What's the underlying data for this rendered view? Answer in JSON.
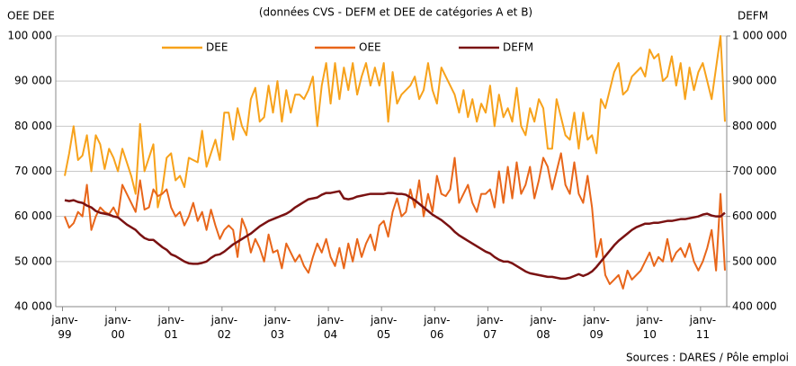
{
  "chart_data": {
    "type": "line",
    "subtitle": "(données CVS - DEFM et DEE de catégories A et B)",
    "ylabel": "OEE DEE",
    "y2label": "DEFM",
    "source": "Sources : DARES / Pôle emploi",
    "legend": "top",
    "categories": [
      "janv-99",
      null,
      null,
      null,
      null,
      null,
      null,
      null,
      null,
      null,
      null,
      null,
      "janv-00",
      null,
      null,
      null,
      null,
      null,
      null,
      null,
      null,
      null,
      null,
      null,
      "janv-01",
      null,
      null,
      null,
      null,
      null,
      null,
      null,
      null,
      null,
      null,
      null,
      "janv-02",
      null,
      null,
      null,
      null,
      null,
      null,
      null,
      null,
      null,
      null,
      null,
      "janv-03",
      null,
      null,
      null,
      null,
      null,
      null,
      null,
      null,
      null,
      null,
      null,
      "janv-04",
      null,
      null,
      null,
      null,
      null,
      null,
      null,
      null,
      null,
      null,
      null,
      "janv-05",
      null,
      null,
      null,
      null,
      null,
      null,
      null,
      null,
      null,
      null,
      null,
      "janv-06",
      null,
      null,
      null,
      null,
      null,
      null,
      null,
      null,
      null,
      null,
      null,
      "janv-07",
      null,
      null,
      null,
      null,
      null,
      null,
      null,
      null,
      null,
      null,
      null,
      "janv-08",
      null,
      null,
      null,
      null,
      null,
      null,
      null,
      null,
      null,
      null,
      null,
      "janv-09",
      null,
      null,
      null,
      null,
      null,
      null,
      null,
      null,
      null,
      null,
      null,
      "janv-10",
      null,
      null,
      null,
      null,
      null,
      null,
      null,
      null,
      null,
      null,
      null,
      "janv-11",
      null,
      null,
      null,
      null,
      null
    ],
    "series": [
      {
        "name": "DEE",
        "color": "#f7a21b",
        "values": [
          69000,
          74000,
          80000,
          72500,
          73500,
          78000,
          70000,
          78000,
          76000,
          70500,
          75000,
          73000,
          70000,
          75000,
          72000,
          69000,
          65000,
          80500,
          70000,
          73000,
          76000,
          62000,
          66000,
          73000,
          74000,
          68000,
          69000,
          66500,
          73000,
          72500,
          72000,
          79000,
          71000,
          74000,
          77000,
          72500,
          83000,
          83000,
          77000,
          84000,
          80000,
          78000,
          86000,
          88500,
          81000,
          82000,
          89000,
          83000,
          90000,
          81000,
          88000,
          83000,
          87000,
          87000,
          86000,
          88000,
          91000,
          80000,
          89000,
          94000,
          85000,
          94000,
          86000,
          93000,
          88000,
          94000,
          87000,
          91000,
          94000,
          89000,
          93000,
          89000,
          94000,
          81000,
          92000,
          85000,
          87000,
          88000,
          89000,
          91000,
          86000,
          88000,
          94000,
          88000,
          85000,
          93000,
          91000,
          89000,
          87000,
          83000,
          88000,
          82000,
          86000,
          81000,
          85000,
          83000,
          89000,
          80000,
          87000,
          82000,
          84000,
          81000,
          88500,
          80000,
          78000,
          84000,
          81000,
          86000,
          84000,
          75000,
          75000,
          86000,
          82000,
          78000,
          77000,
          83000,
          75000,
          83000,
          77000,
          78000,
          74000,
          86000,
          84000,
          88000,
          92000,
          94000,
          87000,
          88000,
          91000,
          92000,
          93000,
          91000,
          97000,
          95000,
          96000,
          90000,
          91000,
          95500,
          89000,
          94000,
          86000,
          93000,
          88000,
          92000,
          94000,
          90000,
          86000,
          93000,
          100000,
          81000
        ]
      },
      {
        "name": "OEE",
        "color": "#e8661a",
        "values": [
          60000,
          57500,
          58500,
          61000,
          60000,
          67000,
          57000,
          60000,
          62000,
          61000,
          60500,
          62000,
          60000,
          67000,
          65000,
          63000,
          61000,
          68000,
          61500,
          62000,
          66000,
          64500,
          65000,
          66000,
          62000,
          60000,
          61000,
          58000,
          60000,
          63000,
          59000,
          61000,
          57000,
          61500,
          58000,
          55000,
          57000,
          58000,
          57000,
          51000,
          59500,
          57000,
          52000,
          55000,
          53000,
          50000,
          56000,
          52000,
          52500,
          48500,
          54000,
          52000,
          50000,
          51500,
          49000,
          47500,
          51000,
          54000,
          52000,
          55000,
          51000,
          49000,
          53000,
          48500,
          54000,
          50000,
          55000,
          51000,
          54000,
          56000,
          52500,
          58000,
          59000,
          55500,
          61000,
          64000,
          60000,
          61000,
          66000,
          62000,
          68000,
          60000,
          65000,
          61000,
          69000,
          65000,
          64500,
          66000,
          73000,
          63000,
          65000,
          67000,
          63000,
          61000,
          65000,
          65000,
          66000,
          62000,
          70000,
          63000,
          71000,
          64000,
          72000,
          65000,
          67000,
          71000,
          64000,
          68000,
          73000,
          71000,
          66000,
          70000,
          74000,
          67000,
          65000,
          72000,
          65000,
          63000,
          69000,
          62000,
          51000,
          55000,
          47000,
          45000,
          46000,
          47000,
          44000,
          48000,
          46000,
          47000,
          48000,
          50000,
          52000,
          49000,
          51000,
          50000,
          55000,
          50000,
          52000,
          53000,
          51000,
          54000,
          50000,
          48000,
          50000,
          53000,
          57000,
          48000,
          65000,
          48000
        ]
      },
      {
        "name": "DEFM",
        "color": "#7a1212",
        "axis": "y2",
        "values": [
          636000,
          634000,
          636000,
          632000,
          630000,
          624000,
          620000,
          612000,
          608000,
          606000,
          604000,
          600000,
          598000,
          590000,
          582000,
          576000,
          570000,
          560000,
          552000,
          548000,
          548000,
          540000,
          532000,
          526000,
          516000,
          512000,
          506000,
          500000,
          496000,
          495000,
          495000,
          497000,
          500000,
          508000,
          514000,
          516000,
          522000,
          530000,
          538000,
          544000,
          550000,
          556000,
          562000,
          570000,
          578000,
          584000,
          590000,
          594000,
          598000,
          602000,
          606000,
          612000,
          620000,
          626000,
          632000,
          638000,
          640000,
          642000,
          648000,
          652000,
          652000,
          654000,
          656000,
          640000,
          638000,
          640000,
          644000,
          646000,
          648000,
          650000,
          650000,
          650000,
          650000,
          652000,
          652000,
          650000,
          650000,
          648000,
          642000,
          636000,
          628000,
          620000,
          612000,
          604000,
          598000,
          592000,
          584000,
          576000,
          566000,
          558000,
          552000,
          546000,
          540000,
          534000,
          528000,
          522000,
          518000,
          510000,
          504000,
          500000,
          500000,
          496000,
          490000,
          484000,
          478000,
          474000,
          472000,
          470000,
          468000,
          466000,
          466000,
          464000,
          462000,
          462000,
          464000,
          468000,
          472000,
          468000,
          472000,
          478000,
          488000,
          500000,
          512000,
          524000,
          536000,
          546000,
          554000,
          562000,
          570000,
          576000,
          580000,
          584000,
          584000,
          586000,
          586000,
          588000,
          590000,
          590000,
          592000,
          594000,
          594000,
          596000,
          598000,
          600000,
          604000,
          606000,
          602000,
          600000,
          600000,
          608000
        ]
      }
    ],
    "ylim": [
      40000,
      100000
    ],
    "yticks": [
      {
        "value": 40000,
        "label": "40 000"
      },
      {
        "value": 50000,
        "label": "50 000"
      },
      {
        "value": 60000,
        "label": "60 000"
      },
      {
        "value": 70000,
        "label": "70 000"
      },
      {
        "value": 80000,
        "label": "80 000"
      },
      {
        "value": 90000,
        "label": "90 000"
      },
      {
        "value": 100000,
        "label": "100 000"
      }
    ],
    "y2lim": [
      400000,
      1000000
    ],
    "y2ticks": [
      {
        "value": 400000,
        "label": "400 000"
      },
      {
        "value": 500000,
        "label": "500 000"
      },
      {
        "value": 600000,
        "label": "600 000"
      },
      {
        "value": 700000,
        "label": "700 000"
      },
      {
        "value": 800000,
        "label": "800 000"
      },
      {
        "value": 900000,
        "label": "900 000"
      },
      {
        "value": 1000000,
        "label": "1 000 000"
      }
    ],
    "grid": true
  }
}
